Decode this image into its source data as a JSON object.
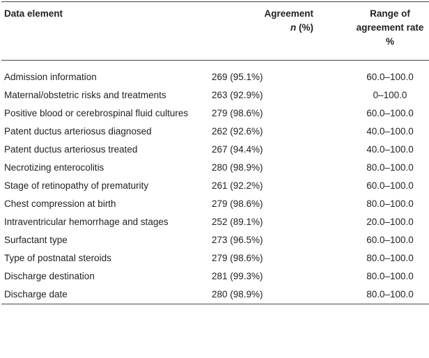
{
  "header": [
    "Data element",
    [
      "Agreement",
      "n",
      " (%)"
    ],
    [
      "Range of",
      "agreement rate",
      "%"
    ]
  ],
  "rows": [
    [
      "Admission information",
      "269 (95.1%)",
      "60.0–100.0"
    ],
    [
      "Maternal/obstetric risks and treatments",
      "263 (92.9%)",
      "0–100.0"
    ],
    [
      "Positive blood or cerebrospinal fluid cultures",
      "279 (98.6%)",
      "60.0–100.0"
    ],
    [
      "Patent ductus arteriosus diagnosed",
      "262 (92.6%)",
      "40.0–100.0"
    ],
    [
      "Patent ductus arteriosus treated",
      "267 (94.4%)",
      "40.0–100.0"
    ],
    [
      "Necrotizing enterocolitis",
      "280 (98.9%)",
      "80.0–100.0"
    ],
    [
      "Stage of retinopathy of prematurity",
      "261 (92.2%)",
      "60.0–100.0"
    ],
    [
      "Chest compression at birth",
      "279 (98.6%)",
      "80.0–100.0"
    ],
    [
      "Intraventricular hemorrhage and stages",
      "252 (89.1%)",
      "20.0–100.0"
    ],
    [
      "Surfactant type",
      "273 (96.5%)",
      "60.0–100.0"
    ],
    [
      "Type of postnatal steroids",
      "279 (98.6%)",
      "80.0–100.0"
    ],
    [
      "Discharge destination",
      "281 (99.3%)",
      "80.0–100.0"
    ],
    [
      "Discharge date",
      "280 (98.9%)",
      "80.0–100.0"
    ]
  ]
}
